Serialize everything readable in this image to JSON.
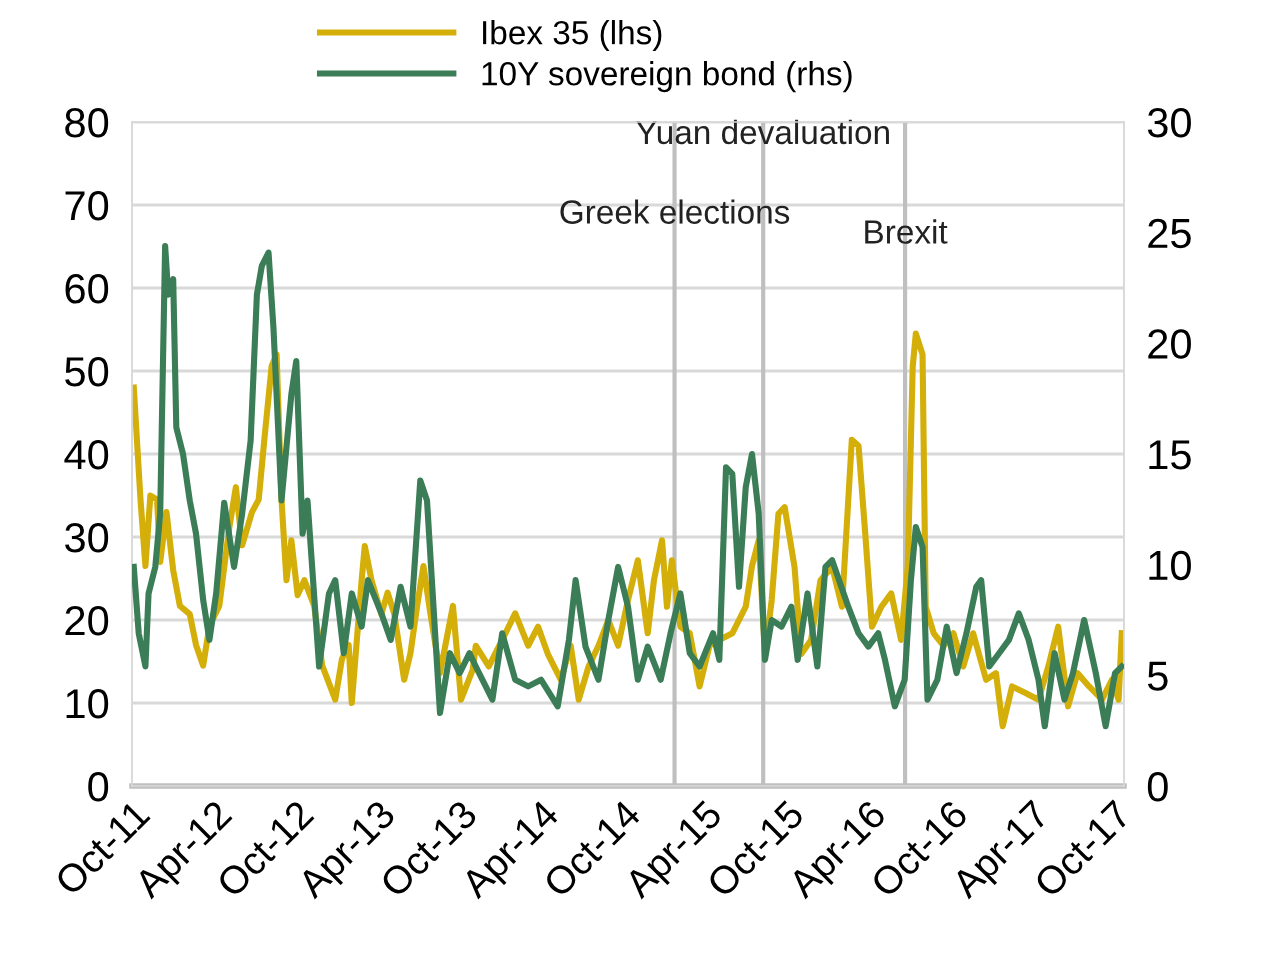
{
  "chart_data": {
    "type": "line",
    "series": [
      {
        "name": "Ibex 35 (lhs)",
        "color": "#d4af0a",
        "axis": "y",
        "x": [
          "2011-10-05",
          "2011-10-20",
          "2011-10-31",
          "2011-11-11",
          "2011-11-26",
          "2011-12-03",
          "2011-12-17",
          "2012-01-01",
          "2012-01-16",
          "2012-02-07",
          "2012-02-21",
          "2012-03-08",
          "2012-03-22",
          "2012-04-13",
          "2012-05-05",
          "2012-05-20",
          "2012-06-03",
          "2012-06-25",
          "2012-07-10",
          "2012-07-24",
          "2012-08-08",
          "2012-08-19",
          "2012-08-30",
          "2012-09-10",
          "2012-09-21",
          "2012-10-05",
          "2012-10-20",
          "2012-11-11",
          "2012-11-29",
          "2012-12-28",
          "2013-01-12",
          "2013-01-27",
          "2013-02-03",
          "2013-02-25",
          "2013-03-04",
          "2013-03-19",
          "2013-04-10",
          "2013-04-24",
          "2013-05-09",
          "2013-05-31",
          "2013-06-14",
          "2013-06-29",
          "2013-07-13",
          "2013-07-28",
          "2013-08-19",
          "2013-09-17",
          "2013-10-05",
          "2013-10-31",
          "2013-11-07",
          "2013-12-06",
          "2014-01-05",
          "2014-02-03",
          "2014-03-04",
          "2014-03-26",
          "2014-04-17",
          "2014-05-16",
          "2014-06-07",
          "2014-06-25",
          "2014-07-17",
          "2014-08-08",
          "2014-08-30",
          "2014-09-21",
          "2014-10-13",
          "2014-11-04",
          "2014-11-26",
          "2014-12-10",
          "2014-12-28",
          "2015-01-08",
          "2015-01-19",
          "2015-02-07",
          "2015-02-28",
          "2015-03-22",
          "2015-04-13",
          "2015-05-05",
          "2015-06-03",
          "2015-07-03",
          "2015-07-17",
          "2015-08-01",
          "2015-08-15",
          "2015-08-30",
          "2015-09-14",
          "2015-09-28",
          "2015-10-20",
          "2015-11-04",
          "2015-11-26",
          "2015-12-17",
          "2016-01-12",
          "2016-02-03",
          "2016-02-25",
          "2016-03-11",
          "2016-03-26",
          "2016-04-10",
          "2016-05-01",
          "2016-05-23",
          "2016-06-14",
          "2016-06-29",
          "2016-07-10",
          "2016-07-17",
          "2016-08-01",
          "2016-08-08",
          "2016-08-26",
          "2016-09-17",
          "2016-10-09",
          "2016-10-31",
          "2016-11-22",
          "2016-12-21",
          "2017-01-12",
          "2017-01-27",
          "2017-02-17",
          "2017-03-19",
          "2017-04-17",
          "2017-05-09",
          "2017-05-31",
          "2017-06-22",
          "2017-07-13",
          "2017-08-08",
          "2017-09-06",
          "2017-09-28",
          "2017-10-13",
          "2017-10-20"
        ],
        "values": [
          48,
          34.5,
          26.5,
          35,
          34.5,
          27,
          33,
          26,
          21.7,
          20.7,
          17,
          14.5,
          19.3,
          21.7,
          31,
          36,
          29,
          33,
          34.5,
          42.5,
          50.6,
          52,
          34.5,
          24.8,
          29.6,
          23,
          24.8,
          21.7,
          14.5,
          10.4,
          15.3,
          17,
          10,
          24.8,
          28.9,
          24.8,
          20.7,
          23.3,
          20.7,
          12.8,
          16,
          21.7,
          26.5,
          21,
          13.6,
          21.7,
          10.4,
          14,
          16.9,
          14.4,
          17.6,
          20.8,
          16.9,
          19.2,
          15.9,
          12.8,
          16.9,
          10.4,
          14.4,
          16.9,
          20,
          16.9,
          22.4,
          27.2,
          18.4,
          24.8,
          29.6,
          21.6,
          27.2,
          19.2,
          18.4,
          12,
          16.9,
          17.6,
          18.4,
          21.6,
          26.5,
          29.6,
          15.9,
          22.4,
          32.8,
          33.6,
          26.4,
          15.9,
          17.6,
          24.8,
          26.4,
          21.6,
          41.7,
          41,
          30.4,
          19.2,
          21.6,
          23.2,
          17.6,
          26.4,
          50.5,
          54.5,
          52,
          21.6,
          18.4,
          16.9,
          18.4,
          14.4,
          18.4,
          12.8,
          13.6,
          7.2,
          12,
          11.2,
          10.4,
          14.4,
          19.2,
          9.6,
          13.6,
          12,
          10.4,
          12.8,
          10.4,
          18.4
        ]
      },
      {
        "name": "10Y sovereign bond (rhs)",
        "color": "#3b7d56",
        "axis": "y2",
        "x": [
          "2011-10-05",
          "2011-10-16",
          "2011-10-31",
          "2011-11-07",
          "2011-11-22",
          "2011-12-03",
          "2011-12-14",
          "2011-12-21",
          "2012-01-01",
          "2012-01-08",
          "2012-01-23",
          "2012-02-07",
          "2012-02-21",
          "2012-03-08",
          "2012-03-22",
          "2012-04-06",
          "2012-04-24",
          "2012-05-16",
          "2012-06-03",
          "2012-06-22",
          "2012-07-06",
          "2012-07-17",
          "2012-08-01",
          "2012-08-12",
          "2012-08-30",
          "2012-09-21",
          "2012-10-02",
          "2012-10-16",
          "2012-10-27",
          "2012-11-22",
          "2012-12-14",
          "2012-12-28",
          "2013-01-16",
          "2013-02-03",
          "2013-02-25",
          "2013-03-11",
          "2013-04-10",
          "2013-05-01",
          "2013-05-23",
          "2013-06-14",
          "2013-07-06",
          "2013-07-21",
          "2013-08-19",
          "2013-09-10",
          "2013-10-02",
          "2013-10-24",
          "2013-11-07",
          "2013-12-14",
          "2014-01-05",
          "2014-02-03",
          "2014-03-04",
          "2014-04-02",
          "2014-05-09",
          "2014-06-03",
          "2014-06-18",
          "2014-07-10",
          "2014-08-08",
          "2014-08-30",
          "2014-09-21",
          "2014-10-13",
          "2014-11-04",
          "2014-11-26",
          "2014-12-25",
          "2015-01-16",
          "2015-02-07",
          "2015-02-28",
          "2015-03-22",
          "2015-04-21",
          "2015-05-05",
          "2015-05-20",
          "2015-06-03",
          "2015-06-18",
          "2015-07-03",
          "2015-07-17",
          "2015-08-01",
          "2015-08-15",
          "2015-08-30",
          "2015-09-21",
          "2015-10-13",
          "2015-10-27",
          "2015-11-18",
          "2015-12-10",
          "2015-12-28",
          "2016-01-12",
          "2016-02-17",
          "2016-03-11",
          "2016-04-02",
          "2016-04-24",
          "2016-05-09",
          "2016-05-31",
          "2016-06-22",
          "2016-07-06",
          "2016-07-17",
          "2016-08-01",
          "2016-08-12",
          "2016-09-03",
          "2016-09-24",
          "2016-10-16",
          "2016-11-07",
          "2016-11-29",
          "2016-12-10",
          "2016-12-28",
          "2017-01-19",
          "2017-02-10",
          "2017-03-04",
          "2017-03-26",
          "2017-04-17",
          "2017-05-01",
          "2017-05-23",
          "2017-06-14",
          "2017-07-03",
          "2017-07-28",
          "2017-08-23",
          "2017-09-14",
          "2017-10-05",
          "2017-10-20"
        ],
        "values": [
          9.9,
          6.9,
          5.4,
          8.7,
          9.9,
          12.3,
          24.4,
          22.2,
          22.9,
          16.2,
          15,
          12.9,
          11.4,
          8.4,
          6.6,
          8.7,
          12.8,
          9.9,
          12.3,
          15.6,
          22.2,
          23.5,
          24.1,
          20.7,
          12.9,
          17.7,
          19.2,
          11.4,
          12.9,
          5.4,
          8.7,
          9.3,
          6,
          8.7,
          7.2,
          9.3,
          7.8,
          6.6,
          9,
          7.2,
          13.8,
          12.9,
          3.3,
          6,
          5.1,
          6,
          5.4,
          3.9,
          6.9,
          4.8,
          4.5,
          4.8,
          3.6,
          6.6,
          9.3,
          6.3,
          4.8,
          7.5,
          9.9,
          8.1,
          4.8,
          6.3,
          4.8,
          6.9,
          8.7,
          6,
          5.4,
          6.9,
          5.7,
          14.4,
          14.1,
          9,
          13.5,
          15,
          12.3,
          5.7,
          7.5,
          7.2,
          8.1,
          5.7,
          8.7,
          5.4,
          9.9,
          10.2,
          8.1,
          6.9,
          6.3,
          6.9,
          5.7,
          3.6,
          4.8,
          9.3,
          11.7,
          10.8,
          3.9,
          4.8,
          7.2,
          5.1,
          6.9,
          9,
          9.3,
          5.4,
          6,
          6.6,
          7.8,
          6.6,
          4.8,
          2.7,
          6,
          3.9,
          5.1,
          7.5,
          5.1,
          2.7,
          5.1,
          5.4
        ]
      }
    ],
    "xlim": [
      "2011-10-01",
      "2017-10-25"
    ],
    "xticks": [
      {
        "value": "2011-10-01",
        "label": "Oct-11"
      },
      {
        "value": "2012-04-01",
        "label": "Apr-12"
      },
      {
        "value": "2012-10-01",
        "label": "Oct-12"
      },
      {
        "value": "2013-04-01",
        "label": "Apr-13"
      },
      {
        "value": "2013-10-01",
        "label": "Oct-13"
      },
      {
        "value": "2014-04-01",
        "label": "Apr-14"
      },
      {
        "value": "2014-10-01",
        "label": "Oct-14"
      },
      {
        "value": "2015-04-01",
        "label": "Apr-15"
      },
      {
        "value": "2015-10-01",
        "label": "Oct-15"
      },
      {
        "value": "2016-04-01",
        "label": "Apr-16"
      },
      {
        "value": "2016-10-01",
        "label": "Oct-16"
      },
      {
        "value": "2017-04-01",
        "label": "Apr-17"
      },
      {
        "value": "2017-10-01",
        "label": "Oct-17"
      }
    ],
    "ylim": [
      0,
      80
    ],
    "yticks": [
      0,
      10,
      20,
      30,
      40,
      50,
      60,
      70,
      80
    ],
    "y2lim": [
      0,
      30
    ],
    "y2ticks": [
      0,
      5,
      10,
      15,
      20,
      25,
      30
    ],
    "ref_lines": [
      {
        "axis": "x",
        "value": "2015-01-25",
        "label": "Greek elections",
        "color": "#bfbfbf"
      },
      {
        "axis": "x",
        "value": "2015-08-11",
        "label": "Yuan devaluation",
        "color": "#bfbfbf"
      },
      {
        "axis": "x",
        "value": "2016-06-23",
        "label": "Brexit",
        "color": "#bfbfbf"
      }
    ],
    "grid": "y",
    "legend": "top",
    "line_style": "solid"
  }
}
